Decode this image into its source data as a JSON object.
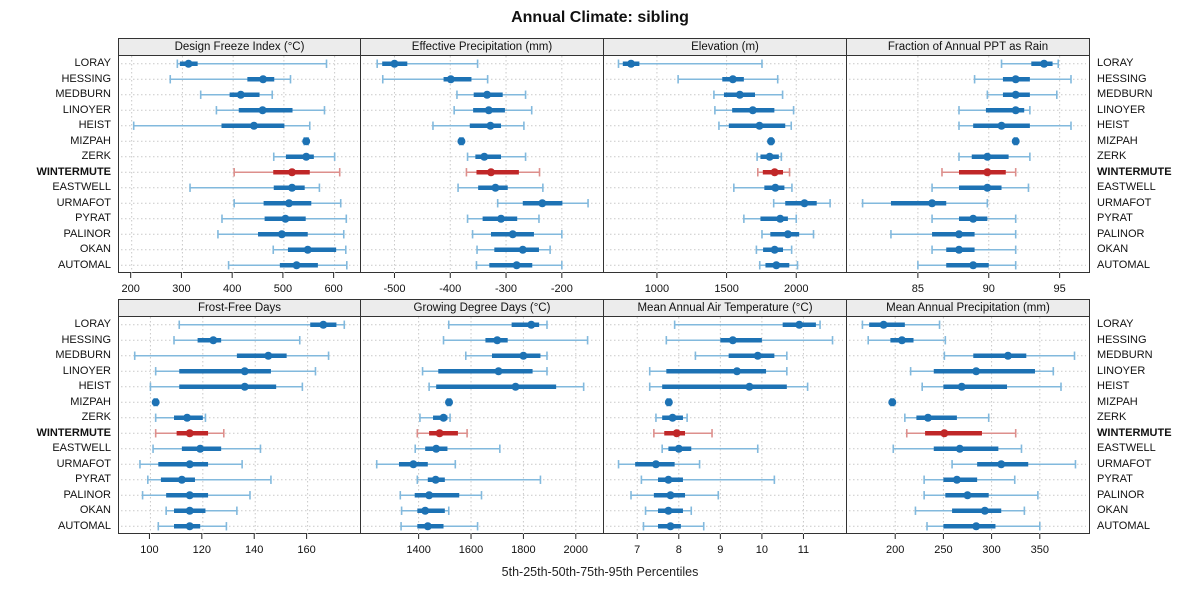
{
  "colors": {
    "blue": "#1d72b4",
    "blue_light": "#82b9dd",
    "red": "#c02728",
    "red_light": "#dd8f8c",
    "grid": "#c9c9c9",
    "border": "#333333",
    "strip_bg": "#ececec"
  },
  "chart_data": {
    "type": "trellis-dotplot",
    "title": "Annual Climate: sibling",
    "footer": "5th-25th-50th-75th-95th Percentiles",
    "layout": "2 rows x 4 columns, row labels on both sides, grid dotted",
    "percentile_labels": [
      "5th",
      "25th",
      "50th",
      "75th",
      "95th"
    ],
    "categories": [
      "LORAY",
      "HESSING",
      "MEDBURN",
      "LINOYER",
      "HEIST",
      "MIZPAH",
      "ZERK",
      "WINTERMUTE",
      "EASTWELL",
      "URMAFOT",
      "PYRAT",
      "PALINOR",
      "OKAN",
      "AUTOMAL"
    ],
    "highlight_category": "WINTERMUTE",
    "panels": [
      {
        "label": "Design Freeze Index (°C)",
        "ticks": [
          200,
          300,
          400,
          500,
          600
        ],
        "range": [
          175,
          650
        ],
        "values": [
          [
            290,
            295,
            312,
            330,
            584
          ],
          [
            276,
            428,
            459,
            481,
            513
          ],
          [
            336,
            393,
            415,
            452,
            477
          ],
          [
            367,
            411,
            458,
            517,
            580
          ],
          [
            204,
            377,
            441,
            501,
            551
          ],
          [
            540,
            542,
            544,
            546,
            548
          ],
          [
            480,
            504,
            544,
            559,
            600
          ],
          [
            402,
            479,
            516,
            551,
            610
          ],
          [
            315,
            480,
            516,
            541,
            570
          ],
          [
            402,
            460,
            510,
            554,
            612
          ],
          [
            378,
            462,
            503,
            543,
            623
          ],
          [
            370,
            449,
            496,
            547,
            618
          ],
          [
            479,
            508,
            547,
            603,
            622
          ],
          [
            391,
            492,
            525,
            567,
            624
          ]
        ]
      },
      {
        "label": "Effective Precipitation (mm)",
        "ticks": [
          -500,
          -400,
          -300,
          -200
        ],
        "range": [
          -560,
          -128
        ],
        "values": [
          [
            -531,
            -522,
            -500,
            -477,
            -351
          ],
          [
            -521,
            -412,
            -399,
            -362,
            -333
          ],
          [
            -388,
            -358,
            -334,
            -306,
            -265
          ],
          [
            -393,
            -359,
            -331,
            -302,
            -254
          ],
          [
            -431,
            -365,
            -328,
            -309,
            -268
          ],
          [
            -383,
            -381.5,
            -380,
            -378.5,
            -377
          ],
          [
            -369,
            -355,
            -339,
            -309,
            -265
          ],
          [
            -371,
            -353,
            -327,
            -277,
            -240
          ],
          [
            -386,
            -350,
            -319,
            -297,
            -234
          ],
          [
            -315,
            -270,
            -235,
            -199,
            -153
          ],
          [
            -369,
            -342,
            -309,
            -280,
            -241
          ],
          [
            -360,
            -327,
            -288,
            -250,
            -200
          ],
          [
            -352,
            -321,
            -270,
            -241,
            -221
          ],
          [
            -353,
            -330,
            -281,
            -253,
            -200
          ]
        ]
      },
      {
        "label": "Elevation (m)",
        "ticks": [
          1000,
          1500,
          2000
        ],
        "range": [
          620,
          2350
        ],
        "values": [
          [
            724,
            755,
            814,
            874,
            1754
          ],
          [
            1152,
            1469,
            1545,
            1624,
            1867
          ],
          [
            1409,
            1481,
            1595,
            1704,
            1902
          ],
          [
            1416,
            1540,
            1688,
            1843,
            1981
          ],
          [
            1445,
            1516,
            1736,
            1921,
            1964
          ],
          [
            1812,
            1816,
            1819,
            1822,
            1826
          ],
          [
            1719,
            1743,
            1809,
            1875,
            1893
          ],
          [
            1724,
            1760,
            1845,
            1905,
            1952
          ],
          [
            1552,
            1771,
            1850,
            1915,
            1969
          ],
          [
            1838,
            1921,
            2059,
            2147,
            2243
          ],
          [
            1624,
            1743,
            1885,
            1940,
            2000
          ],
          [
            1754,
            1814,
            1940,
            2021,
            2124
          ],
          [
            1714,
            1762,
            1845,
            1905,
            1967
          ],
          [
            1738,
            1779,
            1857,
            1950,
            2009
          ]
        ]
      },
      {
        "label": "Fraction of Annual PPT as Rain",
        "ticks": [
          85,
          90,
          95
        ],
        "range": [
          80,
          97
        ],
        "values": [
          [
            90.9,
            93.0,
            93.9,
            94.5,
            94.9
          ],
          [
            89.0,
            91.0,
            91.9,
            92.9,
            95.8
          ],
          [
            89.9,
            91.0,
            91.9,
            92.9,
            94.8
          ],
          [
            87.9,
            89.8,
            91.9,
            92.5,
            92.9
          ],
          [
            87.9,
            88.9,
            90.9,
            92.9,
            95.8
          ],
          [
            91.8,
            91.85,
            91.9,
            91.95,
            92.0
          ],
          [
            87.9,
            88.8,
            89.9,
            91.4,
            92.9
          ],
          [
            86.7,
            87.9,
            89.9,
            91.2,
            91.9
          ],
          [
            86.0,
            87.9,
            89.9,
            90.9,
            92.8
          ],
          [
            81.1,
            83.1,
            86.0,
            87.0,
            89.9
          ],
          [
            86.0,
            87.9,
            88.9,
            89.9,
            91.9
          ],
          [
            83.1,
            86.0,
            87.9,
            89.0,
            91.9
          ],
          [
            86.0,
            87.0,
            87.9,
            89.0,
            91.9
          ],
          [
            85.0,
            87.0,
            88.9,
            90.0,
            91.9
          ]
        ]
      },
      {
        "label": "Frost-Free Days",
        "ticks": [
          100,
          120,
          140,
          160
        ],
        "range": [
          88,
          180
        ],
        "values": [
          [
            111,
            161,
            166,
            171,
            174
          ],
          [
            109,
            118,
            124,
            127,
            157
          ],
          [
            94,
            133,
            145,
            152,
            168
          ],
          [
            102,
            111,
            136,
            146,
            163
          ],
          [
            100,
            111,
            136,
            148,
            158
          ],
          [
            101.4,
            101.7,
            102,
            102.3,
            102.6
          ],
          [
            102,
            109,
            114,
            120,
            121
          ],
          [
            102,
            110,
            115,
            122,
            128
          ],
          [
            101,
            112,
            119,
            127,
            142
          ],
          [
            96,
            103,
            115,
            122,
            135
          ],
          [
            99,
            104,
            112,
            117,
            146
          ],
          [
            97,
            106,
            115,
            122,
            138
          ],
          [
            106,
            109,
            115,
            121,
            133
          ],
          [
            103,
            109,
            115,
            119,
            129
          ]
        ]
      },
      {
        "label": "Growing Degree Days (°C)",
        "ticks": [
          1400,
          1600,
          1800,
          2000
        ],
        "range": [
          1180,
          2100
        ],
        "values": [
          [
            1515,
            1755,
            1830,
            1860,
            1890
          ],
          [
            1495,
            1655,
            1700,
            1740,
            2045
          ],
          [
            1580,
            1680,
            1800,
            1865,
            1890
          ],
          [
            1415,
            1475,
            1705,
            1835,
            1890
          ],
          [
            1440,
            1467,
            1770,
            1925,
            2030
          ],
          [
            1510,
            1513,
            1516,
            1519,
            1522
          ],
          [
            1405,
            1455,
            1495,
            1510,
            1520
          ],
          [
            1395,
            1440,
            1480,
            1550,
            1585
          ],
          [
            1387,
            1425,
            1467,
            1510,
            1710
          ],
          [
            1240,
            1325,
            1380,
            1435,
            1540
          ],
          [
            1395,
            1435,
            1465,
            1500,
            1865
          ],
          [
            1330,
            1385,
            1440,
            1555,
            1640
          ],
          [
            1335,
            1395,
            1425,
            1500,
            1515
          ],
          [
            1333,
            1395,
            1435,
            1495,
            1625
          ]
        ]
      },
      {
        "label": "Mean Annual Air Temperature (°C)",
        "ticks": [
          7,
          8,
          9,
          10,
          11
        ],
        "range": [
          6.2,
          12.0
        ],
        "values": [
          [
            7.9,
            10.5,
            10.9,
            11.3,
            11.4
          ],
          [
            7.7,
            9.0,
            9.3,
            10.0,
            11.7
          ],
          [
            8.4,
            9.2,
            9.9,
            10.3,
            10.6
          ],
          [
            7.3,
            7.7,
            9.4,
            10.1,
            10.6
          ],
          [
            7.3,
            7.6,
            9.7,
            10.6,
            11.1
          ],
          [
            7.72,
            7.74,
            7.76,
            7.78,
            7.8
          ],
          [
            7.45,
            7.6,
            7.85,
            8.1,
            8.2
          ],
          [
            7.4,
            7.65,
            7.95,
            8.15,
            8.8
          ],
          [
            7.6,
            7.75,
            8.0,
            8.3,
            9.9
          ],
          [
            6.55,
            6.95,
            7.45,
            7.9,
            8.5
          ],
          [
            7.1,
            7.5,
            7.75,
            8.1,
            10.3
          ],
          [
            6.85,
            7.4,
            7.8,
            8.15,
            8.95
          ],
          [
            7.2,
            7.5,
            7.75,
            8.1,
            8.3
          ],
          [
            7.15,
            7.5,
            7.8,
            8.05,
            8.6
          ]
        ]
      },
      {
        "label": "Mean Annual Precipitation (mm)",
        "ticks": [
          200,
          250,
          300,
          350
        ],
        "range": [
          150,
          400
        ],
        "values": [
          [
            166,
            173,
            188,
            210,
            246
          ],
          [
            172,
            195,
            207,
            219,
            252
          ],
          [
            251,
            281,
            317,
            336,
            386
          ],
          [
            216,
            240,
            284,
            345,
            364
          ],
          [
            228,
            250,
            269,
            316,
            372
          ],
          [
            195.5,
            196.2,
            197,
            197.8,
            198.5
          ],
          [
            210,
            222,
            234,
            264,
            297
          ],
          [
            212,
            231,
            251,
            290,
            325
          ],
          [
            198,
            240,
            267,
            307,
            331
          ],
          [
            259,
            285,
            310,
            338,
            387
          ],
          [
            230,
            250,
            264,
            285,
            324
          ],
          [
            230,
            252,
            275,
            297,
            348
          ],
          [
            221,
            259,
            293,
            310,
            334
          ],
          [
            233,
            250,
            284,
            304,
            350
          ]
        ]
      }
    ]
  }
}
